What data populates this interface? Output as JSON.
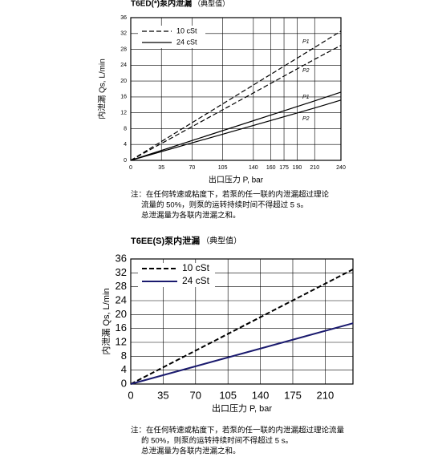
{
  "chart_data": [
    {
      "type": "line",
      "title": "T6ED(*)泵内泄漏",
      "subtitle": "（典型值）",
      "x_label": "出口压力 P, bar",
      "y_label": "内泄漏 Qs, L/min",
      "xlim": [
        0,
        240
      ],
      "xticks": [
        0,
        35,
        70,
        105,
        140,
        160,
        175,
        190,
        210,
        240
      ],
      "ylim": [
        0,
        36
      ],
      "yticks": [
        0,
        4,
        8,
        12,
        16,
        20,
        24,
        28,
        32,
        36
      ],
      "grid": true,
      "x": [
        0,
        210,
        240
      ],
      "series": [
        {
          "name": "10 cSt",
          "color": "#000000",
          "dashed": true,
          "lines": [
            {
              "label": "P1",
              "values": [
                0,
                28.5,
                32.6
              ]
            },
            {
              "label": "P2",
              "values": [
                0,
                25.5,
                29
              ]
            }
          ]
        },
        {
          "name": "24 cSt",
          "color": "#000000",
          "dashed": false,
          "lines": [
            {
              "label": "P1",
              "values": [
                0,
                15,
                17.2
              ]
            },
            {
              "label": "P2",
              "values": [
                0,
                13.2,
                15.2
              ]
            }
          ]
        }
      ],
      "note": [
        "注：在任何转速或粘度下，若泵的任一联的内泄漏超过理论",
        "流量的 50%，则泵的运转持续时间不得超过 5 s。",
        "总泄漏量为各联内泄漏之和。"
      ]
    },
    {
      "type": "line",
      "title": "T6EE(S)泵内泄漏",
      "subtitle": "（典型值）",
      "x_label": "出口压力 P, bar",
      "y_label": "内泄漏 Qs, L/min",
      "xlim": [
        0,
        240
      ],
      "xticks": [
        0,
        35,
        70,
        105,
        140,
        175,
        210
      ],
      "ylim": [
        0,
        36
      ],
      "yticks": [
        0,
        4,
        8,
        12,
        16,
        20,
        24,
        28,
        32,
        36
      ],
      "grid": true,
      "x": [
        0,
        240
      ],
      "series": [
        {
          "name": "10 cSt",
          "color": "#000000",
          "dashed": true,
          "lines": [
            {
              "values": [
                0,
                33
              ]
            }
          ]
        },
        {
          "name": "24 cSt",
          "color": "#1a1a6e",
          "dashed": false,
          "lines": [
            {
              "values": [
                0,
                17.5
              ]
            }
          ]
        }
      ],
      "note": [
        "注：在任何转速或粘度下，若泵的任一联的内泄漏超过理论流量",
        "的 50%，则泵的运转持续时间不得超过 5 s。",
        "总泄漏量为各联内泄漏之和。"
      ]
    }
  ]
}
